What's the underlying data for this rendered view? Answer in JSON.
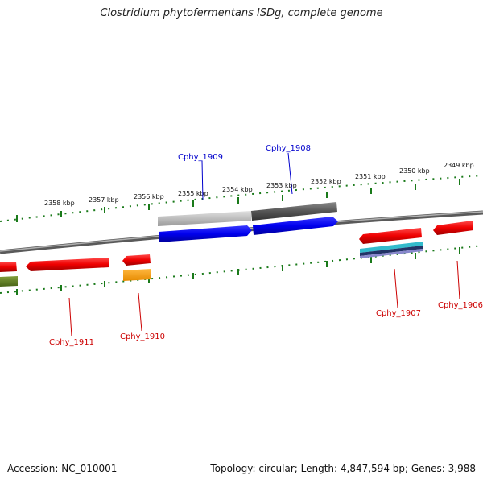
{
  "header": {
    "title": "Clostridium phytofermentans ISDg, complete genome"
  },
  "footer": {
    "accession": "Accession: NC_010001",
    "summary": "Topology: circular; Length: 4,847,594 bp; Genes: 3,988"
  },
  "scale_labels": [
    "2358 kbp",
    "2357 kbp",
    "2356 kbp",
    "2355 kbp",
    "2354 kbp",
    "2353 kbp",
    "2352 kbp",
    "2351 kbp",
    "2350 kbp",
    "2349 kbp"
  ],
  "genes": [
    {
      "name": "Cphy_1909",
      "strand": "forward",
      "color": "#0000cc"
    },
    {
      "name": "Cphy_1908",
      "strand": "forward",
      "color": "#0000cc"
    },
    {
      "name": "Cphy_1907",
      "strand": "reverse",
      "color": "#cc0000"
    },
    {
      "name": "Cphy_1906",
      "strand": "reverse",
      "color": "#cc0000"
    },
    {
      "name": "Cphy_1910",
      "strand": "reverse",
      "color": "#cc0000"
    },
    {
      "name": "Cphy_1911",
      "strand": "reverse",
      "color": "#cc0000"
    }
  ],
  "colors": {
    "forward_gene": "#0000ee",
    "reverse_gene": "#ee0000",
    "backbone": "#808080",
    "tick": "#1a7a1a",
    "cds_light": "#bdbdbd",
    "cds_dark": "#555555",
    "trna": "#ff9900",
    "misc": "#5a7a20",
    "multi_cyan": "#33bbcc",
    "multi_purple": "#6655aa"
  }
}
